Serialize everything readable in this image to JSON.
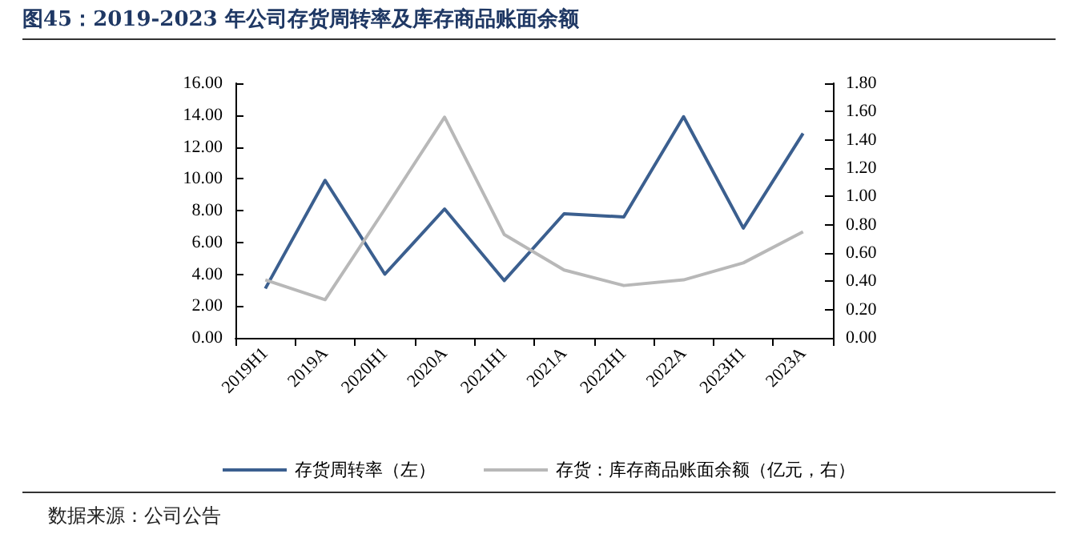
{
  "chart_data": {
    "type": "line",
    "title": "图45：2019-2023 年公司存货周转率及库存商品账面余额",
    "annotations": [
      "数据来源：公司公告"
    ],
    "categories": [
      "2019H1",
      "2019A",
      "2020H1",
      "2020A",
      "2021H1",
      "2021A",
      "2022H1",
      "2022A",
      "2023H1",
      "2023A"
    ],
    "series": [
      {
        "name": "存货周转率（左）",
        "color": "#3b5f8f",
        "values": [
          3.1,
          9.9,
          4.0,
          8.1,
          3.6,
          7.8,
          7.6,
          13.9,
          6.9,
          12.85
        ]
      },
      {
        "name": "存货：库存商品账面余额（亿元，右）",
        "color": "#b8b8b8",
        "axis": "y2",
        "values": [
          0.41,
          0.27,
          0.91,
          1.56,
          0.73,
          0.48,
          0.37,
          0.41,
          0.53,
          0.75
        ]
      }
    ],
    "ylim": [
      0,
      16
    ],
    "yticks": [
      {
        "value": 0,
        "label": "0.00"
      },
      {
        "value": 2,
        "label": "2.00"
      },
      {
        "value": 4,
        "label": "4.00"
      },
      {
        "value": 6,
        "label": "6.00"
      },
      {
        "value": 8,
        "label": "8.00"
      },
      {
        "value": 10,
        "label": "10.00"
      },
      {
        "value": 12,
        "label": "12.00"
      },
      {
        "value": 14,
        "label": "14.00"
      },
      {
        "value": 16,
        "label": "16.00"
      }
    ],
    "y2lim": [
      0,
      1.8
    ],
    "y2ticks": [
      {
        "value": 0,
        "label": "0.00"
      },
      {
        "value": 0.2,
        "label": "0.20"
      },
      {
        "value": 0.4,
        "label": "0.40"
      },
      {
        "value": 0.6,
        "label": "0.60"
      },
      {
        "value": 0.8,
        "label": "0.80"
      },
      {
        "value": 1.0,
        "label": "1.00"
      },
      {
        "value": 1.2,
        "label": "1.20"
      },
      {
        "value": 1.4,
        "label": "1.40"
      },
      {
        "value": 1.6,
        "label": "1.60"
      },
      {
        "value": 1.8,
        "label": "1.80"
      }
    ],
    "grid": false,
    "legend": "bottom",
    "marker": "none",
    "line_style": "solid"
  }
}
